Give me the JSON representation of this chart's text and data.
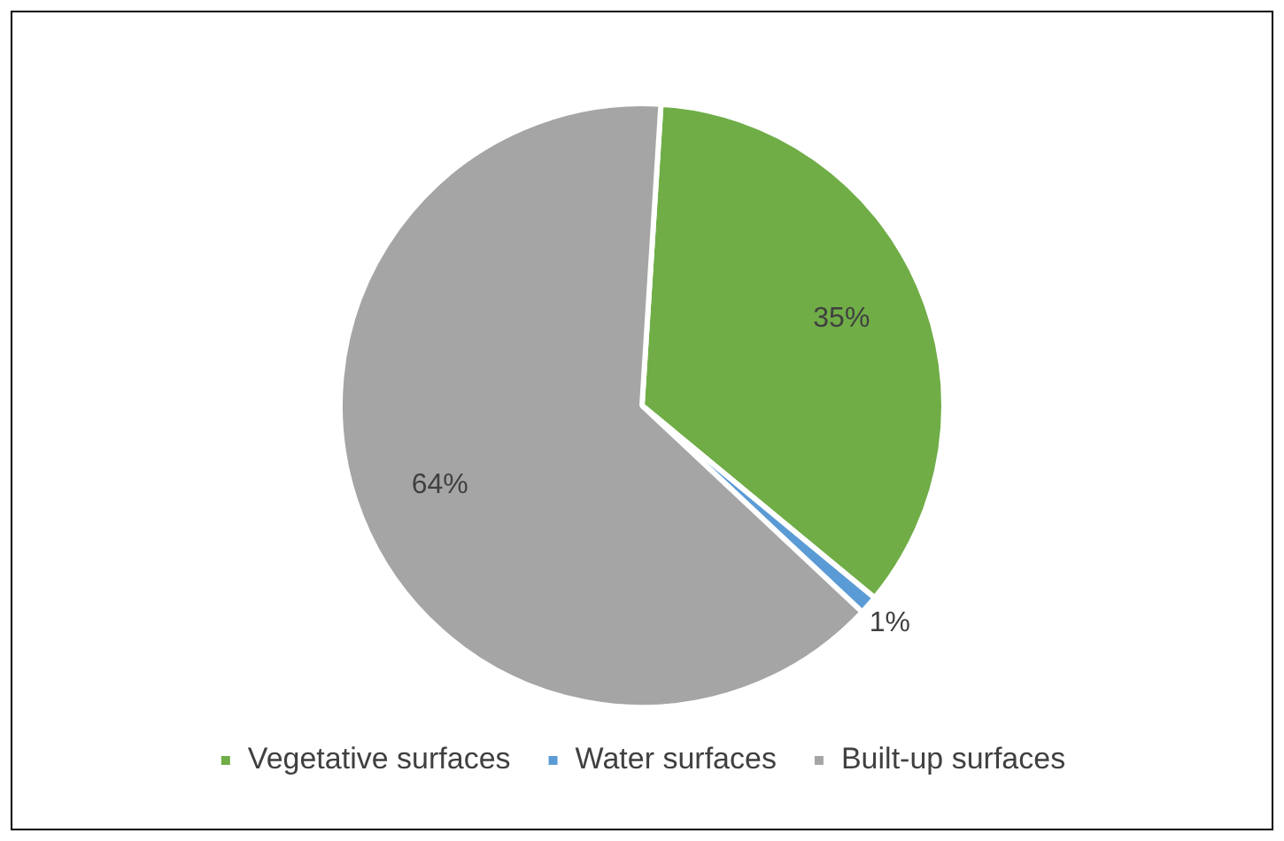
{
  "chart_data": {
    "type": "pie",
    "categories": [
      "Vegetative surfaces",
      "Water surfaces",
      "Built-up surfaces"
    ],
    "values": [
      35,
      1,
      64
    ],
    "colors": [
      "#70ad47",
      "#5b9bd5",
      "#a5a5a5"
    ],
    "value_labels": [
      "35%",
      "1%",
      "64%"
    ],
    "legend": "bottom"
  }
}
